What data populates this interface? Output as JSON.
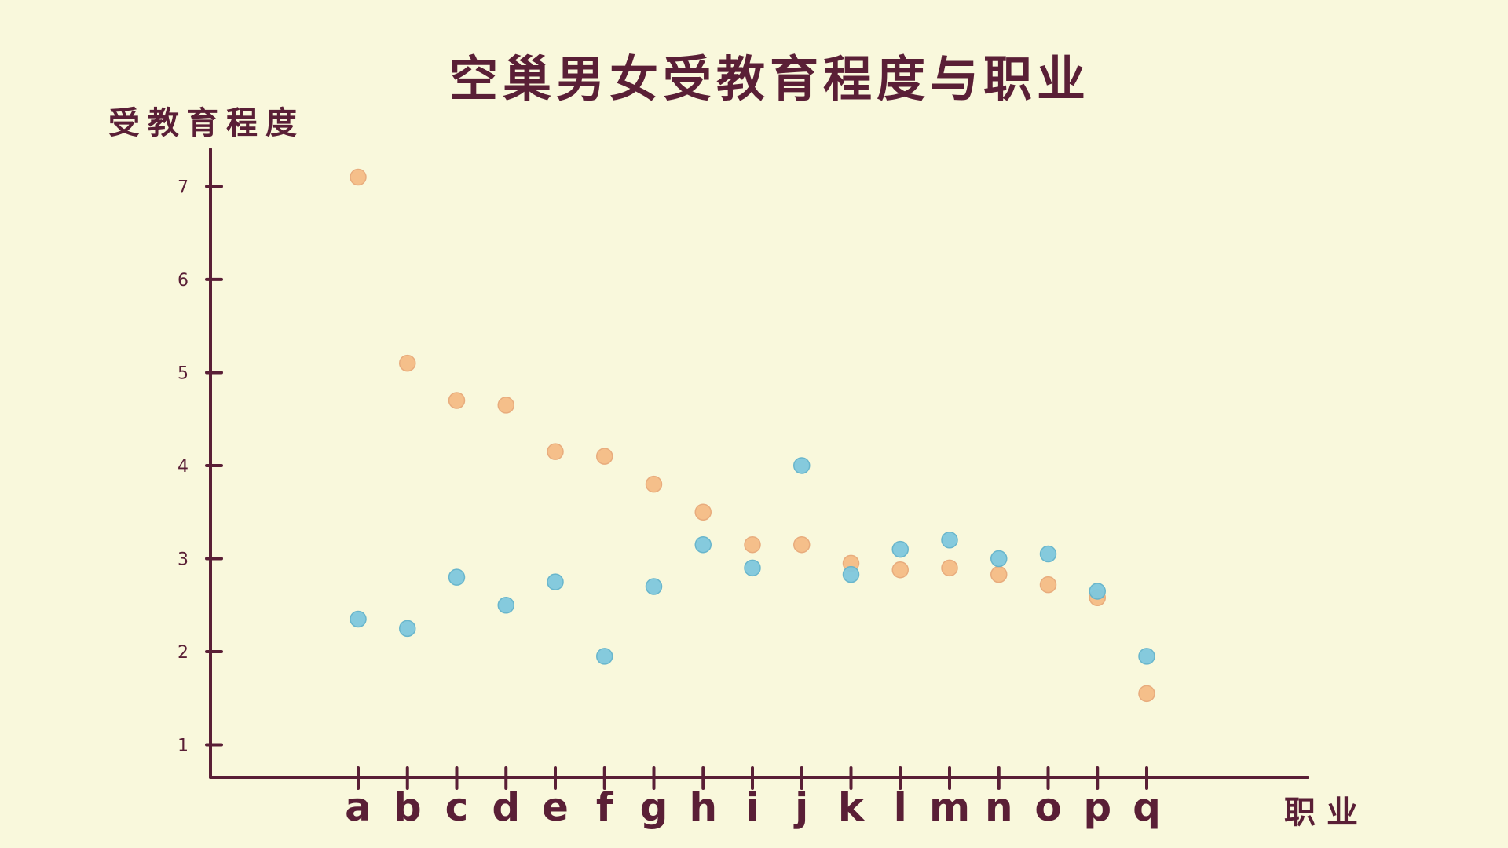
{
  "chart_data": {
    "type": "scatter",
    "title": "空巢男女受教育程度与职业",
    "xlabel": "职业",
    "ylabel": "受教育程度",
    "categories": [
      "a",
      "b",
      "c",
      "d",
      "e",
      "f",
      "g",
      "h",
      "i",
      "j",
      "k",
      "l",
      "m",
      "n",
      "o",
      "p",
      "q"
    ],
    "yticks": [
      1,
      2,
      3,
      4,
      5,
      6,
      7
    ],
    "ylim": [
      0.65,
      7.4
    ],
    "grid": false,
    "series": [
      {
        "color": "#f5bd86",
        "values": [
          7.1,
          5.1,
          4.7,
          4.65,
          4.15,
          4.1,
          3.8,
          3.5,
          3.15,
          3.15,
          2.95,
          2.88,
          2.9,
          2.83,
          2.72,
          2.58,
          1.55
        ]
      },
      {
        "color": "#7fc8de",
        "values": [
          2.35,
          2.25,
          2.8,
          2.5,
          2.75,
          1.95,
          2.7,
          3.15,
          2.9,
          4.0,
          2.83,
          3.1,
          3.2,
          3.0,
          3.05,
          2.65,
          1.95
        ]
      }
    ]
  }
}
